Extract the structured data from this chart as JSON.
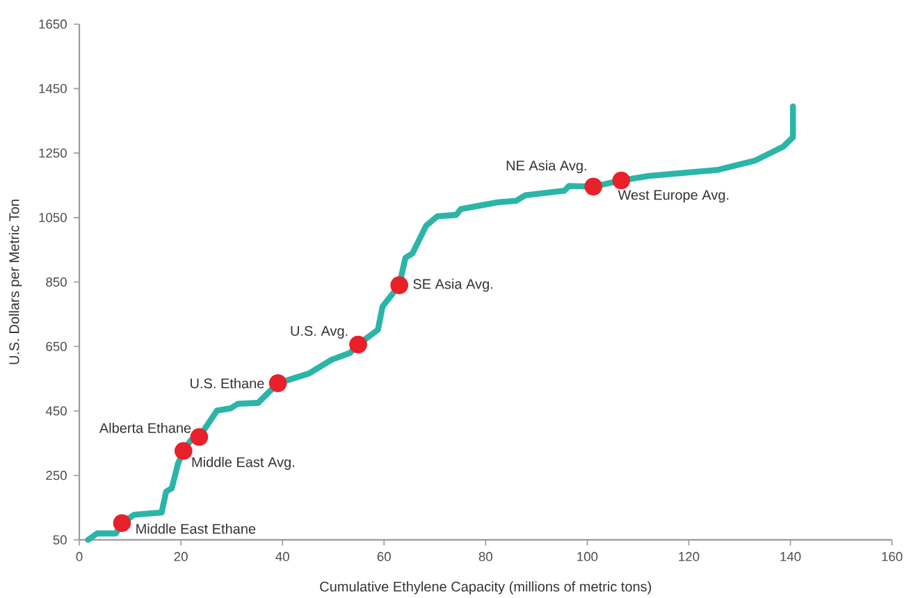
{
  "chart_data": {
    "type": "line",
    "xlabel": "Cumulative Ethylene Capacity (millions of metric tons)",
    "ylabel": "U.S. Dollars per Metric Ton",
    "xlim": [
      0,
      160
    ],
    "xticks": [
      0,
      20,
      40,
      60,
      80,
      100,
      120,
      140,
      160
    ],
    "ylim": [
      50,
      1650
    ],
    "yticks": [
      50,
      250,
      450,
      650,
      850,
      1050,
      1250,
      1450,
      1650
    ],
    "series": [
      {
        "color": "#2bb5a8",
        "x": [
          1.7,
          3.5,
          7.2,
          8.4,
          10.8,
          16.2,
          17.1,
          18.2,
          19.4,
          20.5,
          22,
          23.6,
          27.1,
          29.8,
          31.2,
          35.2,
          39.1,
          45.2,
          49.7,
          53.3,
          54.9,
          58.8,
          59.7,
          63,
          64.2,
          65.6,
          68.3,
          70.5,
          74.2,
          75.1,
          82.3,
          86,
          87.8,
          95.5,
          96.4,
          101.2,
          106.7,
          112.2,
          125.8,
          133.1,
          135.8,
          138.6,
          140.5,
          140.5
        ],
        "values": [
          50,
          70,
          70,
          102,
          128,
          135,
          200,
          210,
          285,
          326,
          360,
          369,
          451,
          458,
          472,
          475,
          536,
          566,
          609,
          630,
          656,
          702,
          774,
          840,
          925,
          939,
          1025,
          1054,
          1058,
          1076,
          1097,
          1102,
          1119,
          1133,
          1148,
          1146,
          1165,
          1179,
          1198,
          1227,
          1248,
          1270,
          1299,
          1395
        ]
      },
      {
        "type": "scatter",
        "color": "#e8202a",
        "marker": "circle",
        "x": [
          8.4,
          20.5,
          23.6,
          39.1,
          54.9,
          63,
          101.2,
          106.7
        ],
        "values": [
          102,
          326,
          369,
          536,
          656,
          840,
          1146,
          1165
        ]
      }
    ],
    "annotations": [
      {
        "text": "Middle East Ethane",
        "x": 8.4,
        "y": 102
      },
      {
        "text": "Middle East Avg.",
        "x": 20.5,
        "y": 326
      },
      {
        "text": "Alberta Ethane",
        "x": 23.6,
        "y": 369
      },
      {
        "text": "U.S. Ethane",
        "x": 39.1,
        "y": 536
      },
      {
        "text": "U.S. Avg.",
        "x": 54.9,
        "y": 656
      },
      {
        "text": "SE Asia Avg.",
        "x": 63,
        "y": 840
      },
      {
        "text": "NE Asia Avg.",
        "x": 101.2,
        "y": 1146
      },
      {
        "text": "West Europe Avg.",
        "x": 106.7,
        "y": 1165
      }
    ]
  }
}
